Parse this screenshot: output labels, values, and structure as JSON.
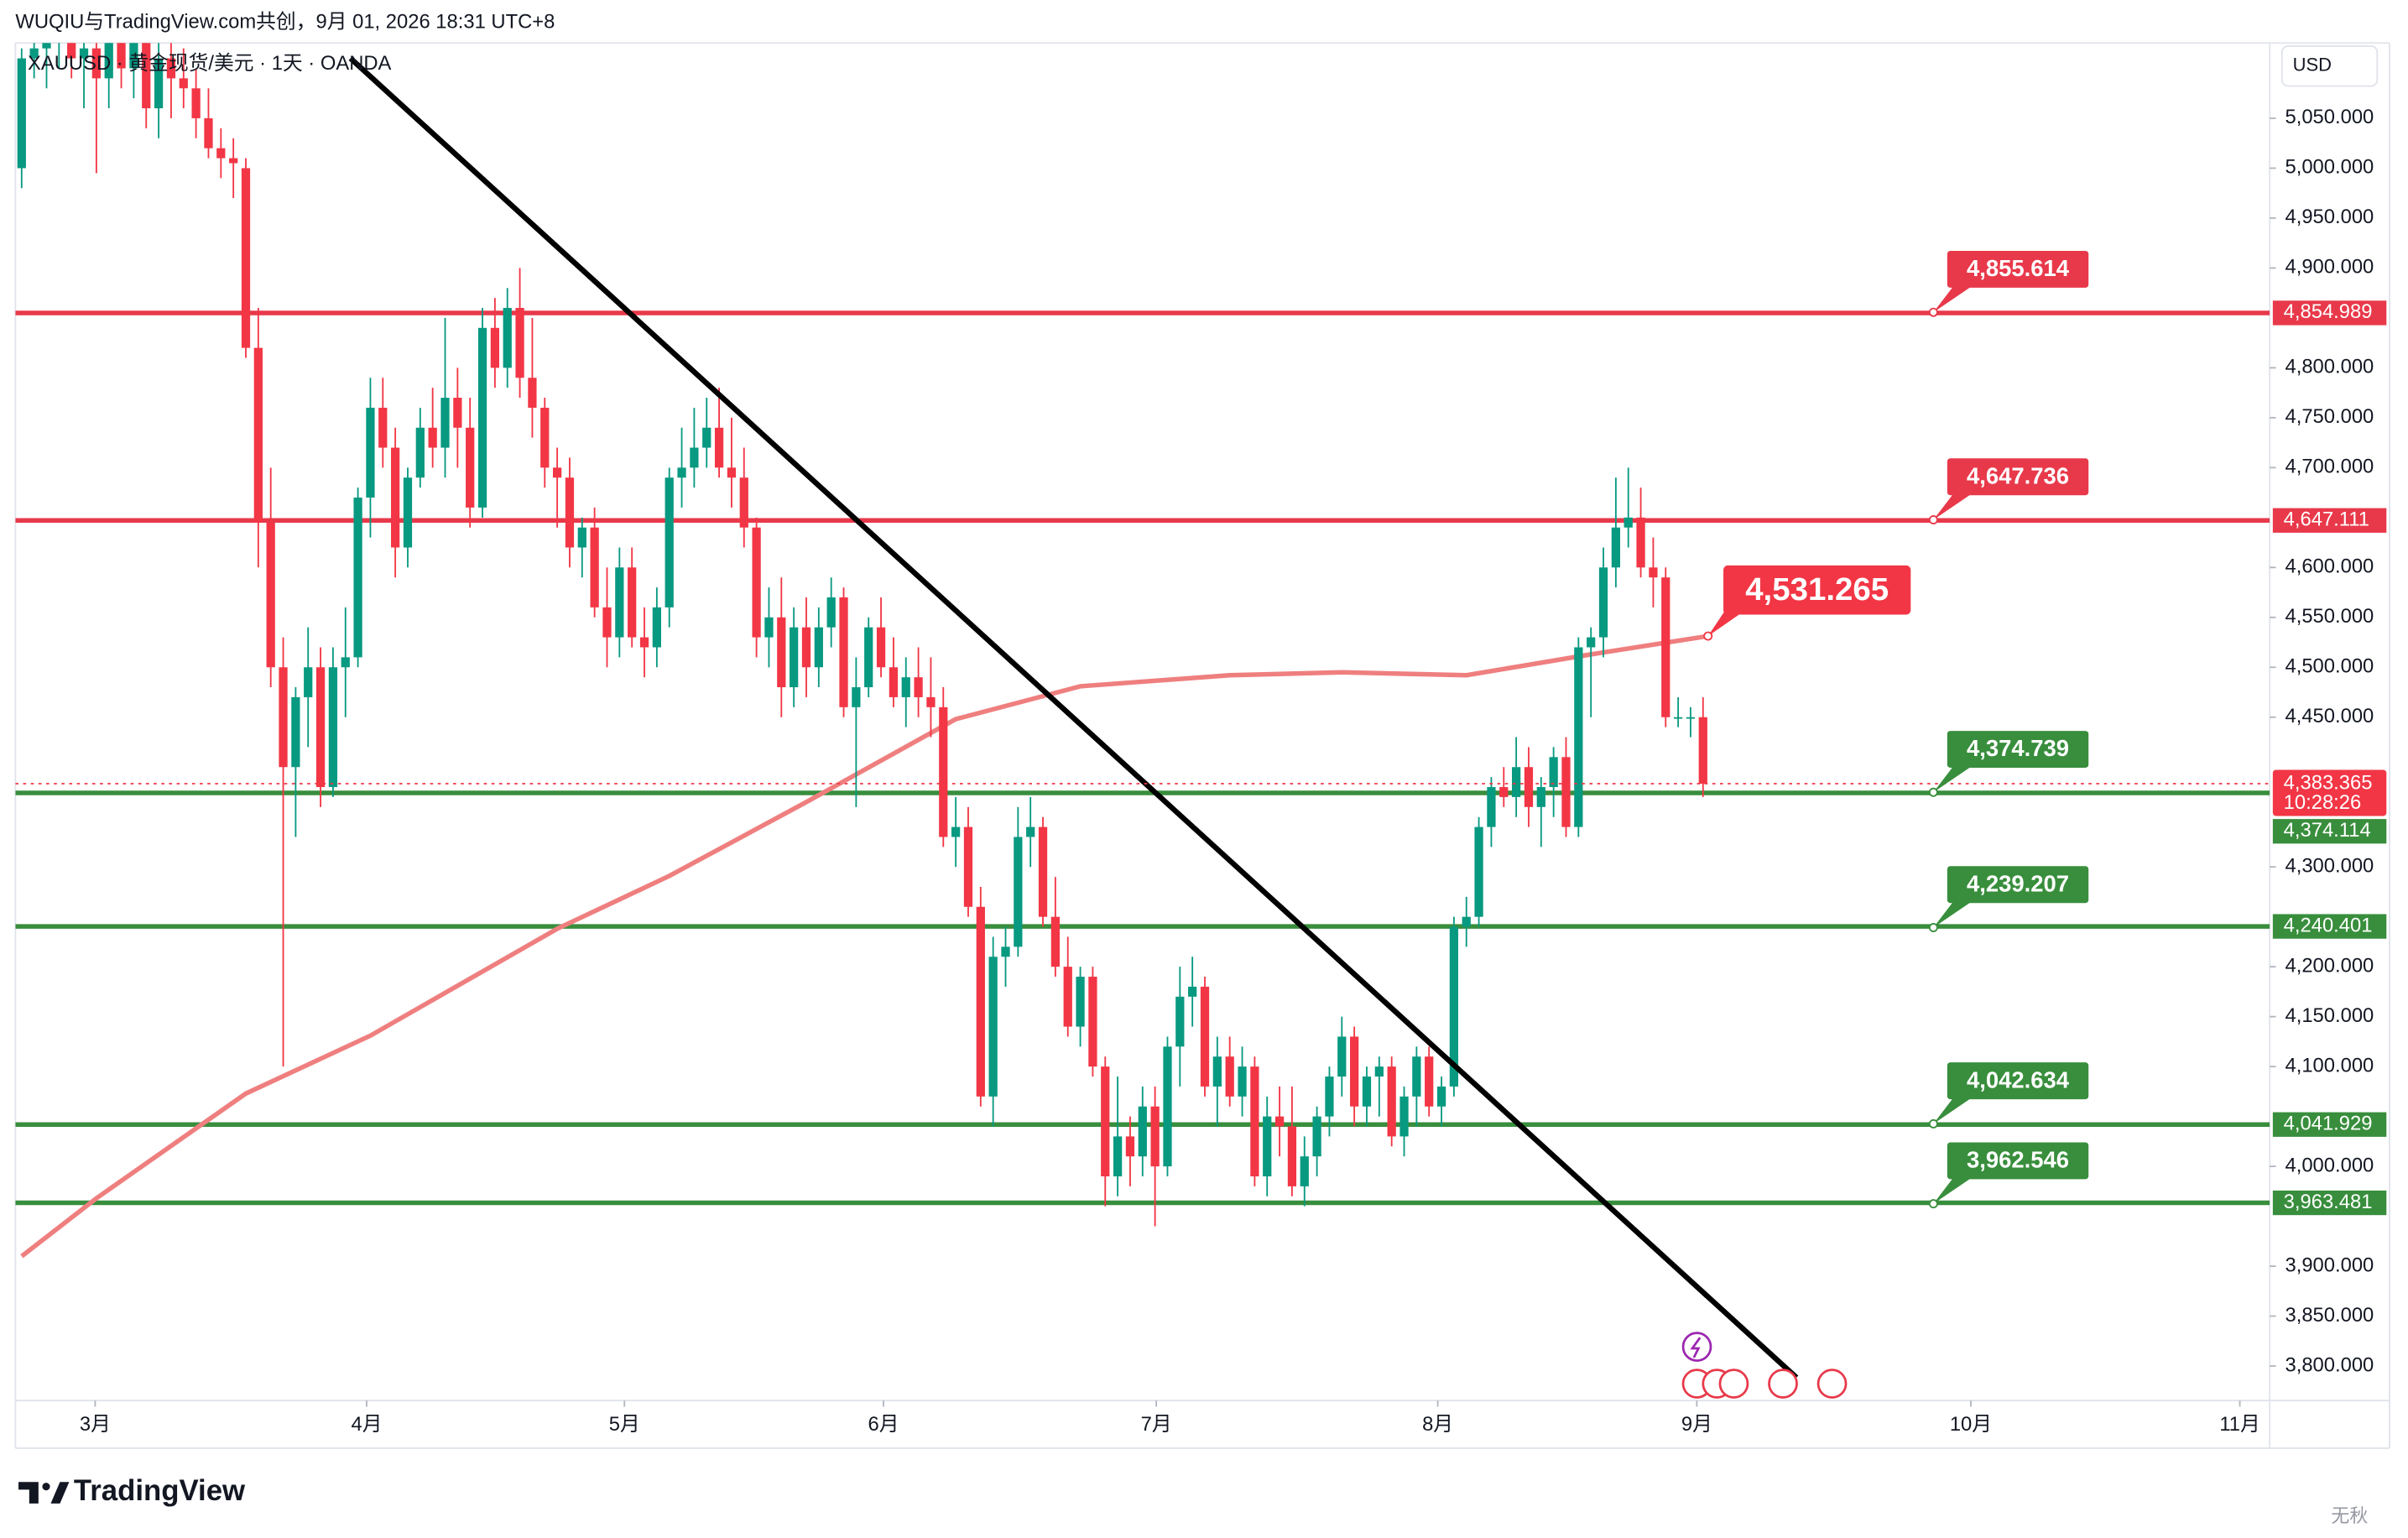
{
  "header": {
    "title": "WUQIU与TradingView.com共创，9月 01, 2026 18:31 UTC+8",
    "symbol": "XAUUSD · 黄金现货/美元 · 1天 · OANDA",
    "currency": "USD"
  },
  "chart_data": {
    "type": "candlestick",
    "x": [
      0,
      1,
      2,
      3,
      4,
      5,
      6,
      7,
      8,
      9,
      10,
      11,
      12,
      13,
      14,
      15,
      16,
      17,
      18,
      19,
      20,
      21,
      22,
      23,
      24,
      25,
      26,
      27,
      28,
      29,
      30,
      31,
      32,
      33,
      34,
      35,
      36,
      37,
      38,
      39,
      40,
      41,
      42,
      43,
      44,
      45,
      46,
      47,
      48,
      49,
      50,
      51,
      52,
      53,
      54,
      55,
      56,
      57,
      58,
      59,
      60,
      61,
      62,
      63,
      64,
      65,
      66,
      67,
      68,
      69,
      70,
      71,
      72,
      73,
      74,
      75,
      76,
      77,
      78,
      79,
      80,
      81,
      82,
      83,
      84,
      85,
      86,
      87,
      88,
      89,
      90,
      91,
      92,
      93,
      94,
      95,
      96,
      97,
      98,
      99,
      100,
      101,
      102,
      103,
      104,
      105,
      106,
      107,
      108,
      109,
      110,
      111,
      112,
      113,
      114,
      115,
      116,
      117,
      118,
      119,
      120,
      121,
      122,
      123,
      124,
      125,
      126,
      127,
      128,
      129,
      130,
      131,
      132,
      133,
      134,
      135
    ],
    "candles": [
      [
        5000,
        5120,
        4980,
        5110
      ],
      [
        5110,
        5130,
        5090,
        5120
      ],
      [
        5120,
        5160,
        5080,
        5140
      ],
      [
        5140,
        5180,
        5100,
        5150
      ],
      [
        5150,
        5170,
        5090,
        5110
      ],
      [
        5110,
        5130,
        5060,
        5120
      ],
      [
        5120,
        5150,
        4995,
        5090
      ],
      [
        5090,
        5140,
        5060,
        5130
      ],
      [
        5130,
        5160,
        5080,
        5100
      ],
      [
        5100,
        5150,
        5070,
        5140
      ],
      [
        5140,
        5170,
        5040,
        5060
      ],
      [
        5060,
        5130,
        5030,
        5110
      ],
      [
        5110,
        5140,
        5050,
        5090
      ],
      [
        5090,
        5120,
        5060,
        5080
      ],
      [
        5080,
        5100,
        5030,
        5050
      ],
      [
        5050,
        5080,
        5010,
        5020
      ],
      [
        5020,
        5040,
        4990,
        5010
      ],
      [
        5010,
        5030,
        4970,
        5005
      ],
      [
        5000,
        5010,
        4810,
        4820
      ],
      [
        4820,
        4860,
        4600,
        4645
      ],
      [
        4645,
        4700,
        4480,
        4500
      ],
      [
        4500,
        4530,
        4100,
        4400
      ],
      [
        4400,
        4480,
        4330,
        4470
      ],
      [
        4470,
        4540,
        4420,
        4500
      ],
      [
        4500,
        4520,
        4360,
        4380
      ],
      [
        4380,
        4520,
        4370,
        4500
      ],
      [
        4500,
        4560,
        4450,
        4510
      ],
      [
        4510,
        4680,
        4500,
        4670
      ],
      [
        4670,
        4790,
        4630,
        4760
      ],
      [
        4760,
        4790,
        4700,
        4720
      ],
      [
        4720,
        4740,
        4590,
        4620
      ],
      [
        4620,
        4700,
        4600,
        4690
      ],
      [
        4690,
        4760,
        4680,
        4740
      ],
      [
        4740,
        4780,
        4700,
        4720
      ],
      [
        4720,
        4850,
        4690,
        4770
      ],
      [
        4770,
        4800,
        4700,
        4740
      ],
      [
        4740,
        4770,
        4640,
        4660
      ],
      [
        4660,
        4860,
        4650,
        4840
      ],
      [
        4840,
        4870,
        4780,
        4800
      ],
      [
        4800,
        4880,
        4780,
        4860
      ],
      [
        4860,
        4900,
        4770,
        4790
      ],
      [
        4790,
        4850,
        4730,
        4760
      ],
      [
        4760,
        4770,
        4680,
        4700
      ],
      [
        4700,
        4720,
        4640,
        4690
      ],
      [
        4690,
        4710,
        4600,
        4620
      ],
      [
        4620,
        4650,
        4590,
        4640
      ],
      [
        4640,
        4660,
        4550,
        4560
      ],
      [
        4560,
        4600,
        4500,
        4530
      ],
      [
        4530,
        4620,
        4510,
        4600
      ],
      [
        4600,
        4620,
        4520,
        4530
      ],
      [
        4530,
        4560,
        4490,
        4520
      ],
      [
        4520,
        4580,
        4500,
        4560
      ],
      [
        4560,
        4700,
        4540,
        4690
      ],
      [
        4690,
        4740,
        4660,
        4700
      ],
      [
        4700,
        4760,
        4680,
        4720
      ],
      [
        4720,
        4770,
        4700,
        4740
      ],
      [
        4740,
        4780,
        4690,
        4700
      ],
      [
        4700,
        4750,
        4660,
        4690
      ],
      [
        4690,
        4720,
        4620,
        4640
      ],
      [
        4640,
        4650,
        4510,
        4530
      ],
      [
        4530,
        4580,
        4500,
        4550
      ],
      [
        4550,
        4590,
        4450,
        4480
      ],
      [
        4480,
        4560,
        4460,
        4540
      ],
      [
        4540,
        4570,
        4470,
        4500
      ],
      [
        4500,
        4560,
        4480,
        4540
      ],
      [
        4540,
        4590,
        4520,
        4570
      ],
      [
        4570,
        4580,
        4450,
        4460
      ],
      [
        4460,
        4510,
        4360,
        4480
      ],
      [
        4480,
        4550,
        4470,
        4540
      ],
      [
        4540,
        4570,
        4490,
        4500
      ],
      [
        4500,
        4530,
        4460,
        4470
      ],
      [
        4470,
        4510,
        4440,
        4490
      ],
      [
        4490,
        4520,
        4450,
        4470
      ],
      [
        4470,
        4510,
        4430,
        4460
      ],
      [
        4460,
        4480,
        4320,
        4330
      ],
      [
        4330,
        4370,
        4300,
        4340
      ],
      [
        4340,
        4360,
        4250,
        4260
      ],
      [
        4260,
        4280,
        4060,
        4070
      ],
      [
        4070,
        4230,
        4040,
        4210
      ],
      [
        4210,
        4240,
        4180,
        4220
      ],
      [
        4220,
        4360,
        4210,
        4330
      ],
      [
        4330,
        4370,
        4300,
        4340
      ],
      [
        4340,
        4350,
        4240,
        4250
      ],
      [
        4250,
        4290,
        4190,
        4200
      ],
      [
        4200,
        4230,
        4130,
        4140
      ],
      [
        4140,
        4200,
        4120,
        4190
      ],
      [
        4190,
        4200,
        4090,
        4100
      ],
      [
        4100,
        4110,
        3960,
        3990
      ],
      [
        3990,
        4090,
        3970,
        4030
      ],
      [
        4030,
        4050,
        3980,
        4010
      ],
      [
        4010,
        4080,
        3990,
        4060
      ],
      [
        4060,
        4080,
        3940,
        4000
      ],
      [
        4000,
        4130,
        3990,
        4120
      ],
      [
        4120,
        4200,
        4080,
        4170
      ],
      [
        4170,
        4210,
        4140,
        4180
      ],
      [
        4180,
        4190,
        4070,
        4080
      ],
      [
        4080,
        4130,
        4040,
        4110
      ],
      [
        4110,
        4130,
        4060,
        4070
      ],
      [
        4070,
        4120,
        4050,
        4100
      ],
      [
        4100,
        4110,
        3980,
        3990
      ],
      [
        3990,
        4070,
        3970,
        4050
      ],
      [
        4050,
        4080,
        4010,
        4040
      ],
      [
        4040,
        4080,
        3970,
        3980
      ],
      [
        3980,
        4030,
        3960,
        4010
      ],
      [
        4010,
        4060,
        3990,
        4050
      ],
      [
        4050,
        4100,
        4030,
        4090
      ],
      [
        4090,
        4150,
        4070,
        4130
      ],
      [
        4130,
        4140,
        4040,
        4060
      ],
      [
        4060,
        4100,
        4040,
        4090
      ],
      [
        4090,
        4110,
        4050,
        4100
      ],
      [
        4100,
        4110,
        4020,
        4030
      ],
      [
        4030,
        4080,
        4010,
        4070
      ],
      [
        4070,
        4120,
        4040,
        4110
      ],
      [
        4110,
        4120,
        4050,
        4060
      ],
      [
        4060,
        4090,
        4040,
        4080
      ],
      [
        4080,
        4250,
        4070,
        4240
      ],
      [
        4240,
        4270,
        4220,
        4250
      ],
      [
        4250,
        4350,
        4240,
        4340
      ],
      [
        4340,
        4390,
        4320,
        4380
      ],
      [
        4380,
        4400,
        4360,
        4370
      ],
      [
        4370,
        4430,
        4350,
        4400
      ],
      [
        4400,
        4420,
        4340,
        4360
      ],
      [
        4360,
        4390,
        4320,
        4380
      ],
      [
        4380,
        4420,
        4350,
        4410
      ],
      [
        4410,
        4430,
        4330,
        4340
      ],
      [
        4340,
        4530,
        4330,
        4520
      ],
      [
        4520,
        4540,
        4450,
        4530
      ],
      [
        4530,
        4620,
        4510,
        4600
      ],
      [
        4600,
        4690,
        4580,
        4640
      ],
      [
        4640,
        4700,
        4620,
        4650
      ],
      [
        4650,
        4680,
        4590,
        4600
      ],
      [
        4600,
        4630,
        4560,
        4590
      ],
      [
        4590,
        4600,
        4440,
        4450
      ],
      [
        4450,
        4470,
        4440,
        4450
      ],
      [
        4450,
        4460,
        4430,
        4450
      ],
      [
        4450,
        4470,
        4370,
        4383.365
      ]
    ],
    "up_color": "#089981",
    "down_color": "#f23645",
    "xlim": [
      -0.5,
      180.5
    ],
    "xticks": [
      {
        "value": 5.9,
        "label": "3月"
      },
      {
        "value": 27.7,
        "label": "4月"
      },
      {
        "value": 48.4,
        "label": "5月"
      },
      {
        "value": 69.2,
        "label": "6月"
      },
      {
        "value": 91.1,
        "label": "7月"
      },
      {
        "value": 113.7,
        "label": "8月"
      },
      {
        "value": 134.5,
        "label": "9月"
      },
      {
        "value": 156.5,
        "label": "10月"
      },
      {
        "value": 178.1,
        "label": "11月"
      }
    ],
    "ylim": [
      3765.4,
      5125.4
    ],
    "yticks": [
      {
        "value": 5050,
        "label": "5,050.000"
      },
      {
        "value": 5000,
        "label": "5,000.000"
      },
      {
        "value": 4950,
        "label": "4,950.000"
      },
      {
        "value": 4900,
        "label": "4,900.000"
      },
      {
        "value": 4800,
        "label": "4,800.000"
      },
      {
        "value": 4750,
        "label": "4,750.000"
      },
      {
        "value": 4700,
        "label": "4,700.000"
      },
      {
        "value": 4600,
        "label": "4,600.000"
      },
      {
        "value": 4550,
        "label": "4,550.000"
      },
      {
        "value": 4500,
        "label": "4,500.000"
      },
      {
        "value": 4450,
        "label": "4,450.000"
      },
      {
        "value": 4300,
        "label": "4,300.000"
      },
      {
        "value": 4200,
        "label": "4,200.000"
      },
      {
        "value": 4150,
        "label": "4,150.000"
      },
      {
        "value": 4100,
        "label": "4,100.000"
      },
      {
        "value": 4000,
        "label": "4,000.000"
      },
      {
        "value": 3900,
        "label": "3,900.000"
      },
      {
        "value": 3850,
        "label": "3,850.000"
      },
      {
        "value": 3800,
        "label": "3,800.000"
      }
    ],
    "grid": false,
    "moving_average": {
      "color": "#ef7f7f",
      "x": [
        0,
        6,
        18,
        28,
        43,
        52,
        63,
        75,
        85,
        97,
        106,
        116,
        126,
        135.4
      ],
      "values": [
        3910,
        3968,
        4073,
        4131,
        4238,
        4291,
        4365,
        4448,
        4481,
        4492,
        4495,
        4492,
        4513,
        4531.265
      ]
    },
    "trendline": {
      "color": "#000000",
      "x": [
        26.4,
        142.5
      ],
      "values": [
        5110,
        3788.5
      ]
    },
    "levels": [
      {
        "value": 4855.614,
        "label": "4,855.614",
        "axis_value": 4854.989,
        "axis_label": "4,854.989",
        "color": "#e8394a"
      },
      {
        "value": 4647.736,
        "label": "4,647.736",
        "axis_value": 4647.111,
        "axis_label": "4,647.111",
        "color": "#e8394a"
      },
      {
        "value": 4374.739,
        "label": "4,374.739",
        "axis_value": 4374.114,
        "axis_label": "4,374.114",
        "color": "#388e3c"
      },
      {
        "value": 4239.207,
        "label": "4,239.207",
        "axis_value": 4240.401,
        "axis_label": "4,240.401",
        "color": "#388e3c"
      },
      {
        "value": 4042.634,
        "label": "4,042.634",
        "axis_value": 4041.929,
        "axis_label": "4,041.929",
        "color": "#388e3c"
      },
      {
        "value": 3962.546,
        "label": "3,962.546",
        "axis_value": 3963.481,
        "axis_label": "3,963.481",
        "color": "#388e3c"
      }
    ],
    "last_price": {
      "value": 4383.365,
      "label": "4,383.365",
      "countdown": "10:28:26",
      "color": "#f23645"
    },
    "annotation": {
      "x": 135.4,
      "value": 4531.265,
      "label": "4,531.265",
      "color": "#f23645"
    }
  },
  "footer": {
    "brand": "TradingView",
    "watermark": "无秋"
  }
}
